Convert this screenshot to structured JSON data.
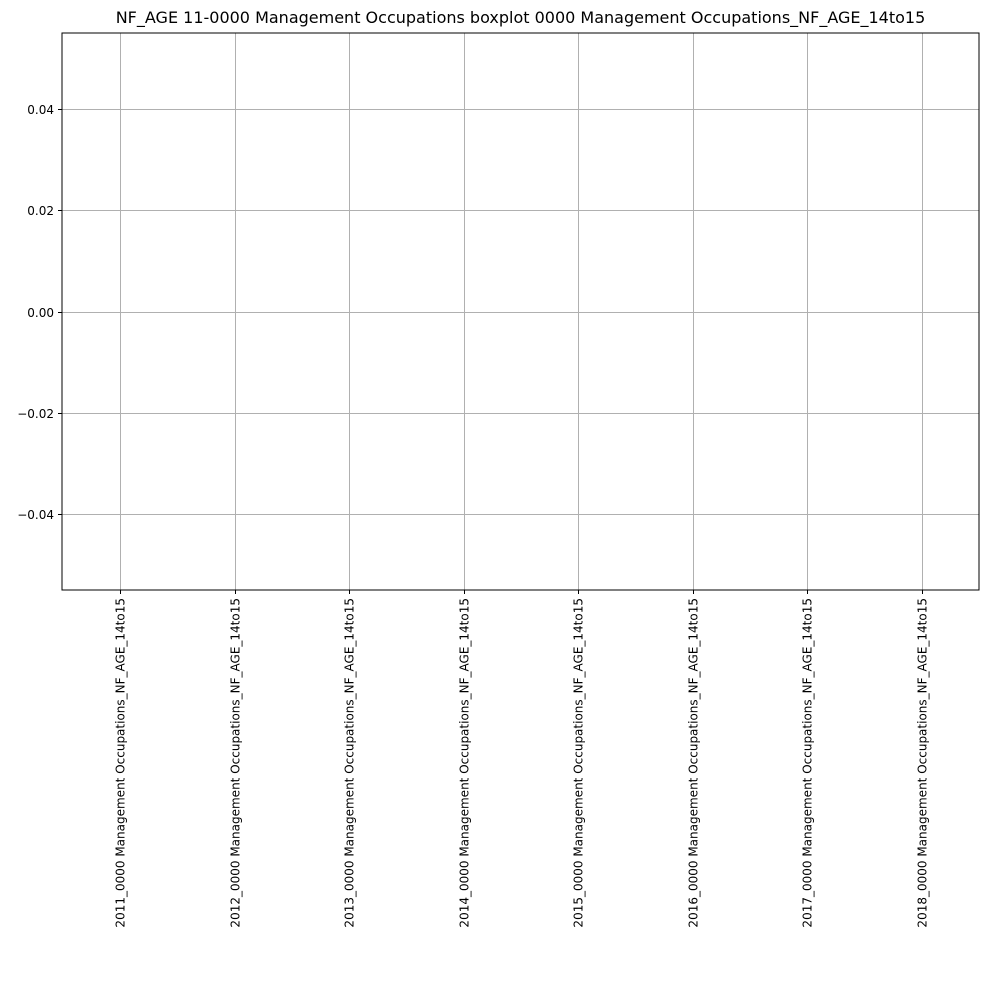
{
  "chart_data": {
    "type": "boxplot",
    "title": "NF_AGE 11-0000 Management Occupations boxplot 0000 Management Occupations_NF_AGE_14to15",
    "xlabel": "",
    "ylabel": "",
    "categories": [
      "2011_0000 Management Occupations_NF_AGE_14to15",
      "2012_0000 Management Occupations_NF_AGE_14to15",
      "2013_0000 Management Occupations_NF_AGE_14to15",
      "2014_0000 Management Occupations_NF_AGE_14to15",
      "2015_0000 Management Occupations_NF_AGE_14to15",
      "2016_0000 Management Occupations_NF_AGE_14to15",
      "2017_0000 Management Occupations_NF_AGE_14to15",
      "2018_0000 Management Occupations_NF_AGE_14to15"
    ],
    "series": [],
    "ylim": [
      -0.055,
      0.055
    ],
    "yticks": [
      -0.04,
      -0.02,
      0.0,
      0.02,
      0.04
    ],
    "ytick_labels": [
      "−0.04",
      "−0.02",
      "0.00",
      "0.02",
      "0.04"
    ],
    "grid": true,
    "colors": {
      "grid": "#b0b0b0",
      "axes": "#000000",
      "background": "#ffffff"
    }
  }
}
